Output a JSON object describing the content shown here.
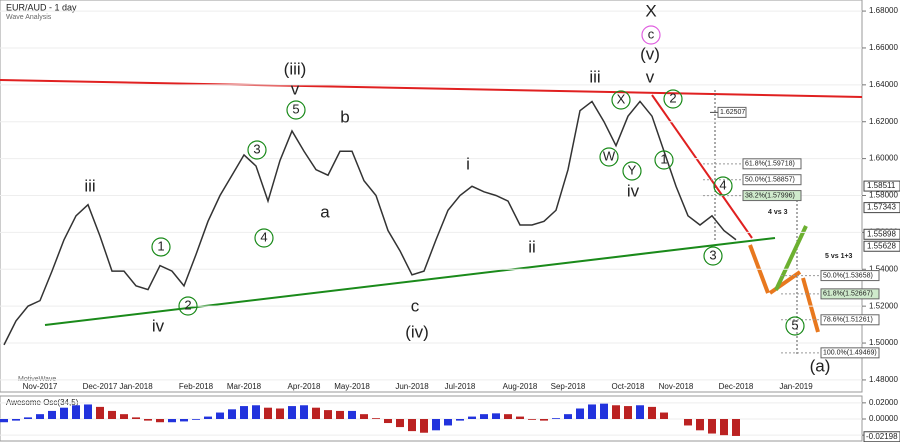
{
  "chart_data": [
    {
      "type": "line",
      "title": "EUR/AUD - 1 day",
      "subtitle": "Wave Analysis",
      "watermark": "MotiveWave",
      "color": "#333333",
      "categories": [
        null,
        null,
        null,
        "Nov-2017",
        null,
        null,
        null,
        null,
        "Dec-2017",
        null,
        null,
        "Jan-2018",
        null,
        null,
        null,
        null,
        "Feb-2018",
        null,
        null,
        null,
        "Mar-2018",
        null,
        null,
        null,
        null,
        "Apr-2018",
        null,
        null,
        null,
        "May-2018",
        null,
        null,
        null,
        null,
        "Jun-2018",
        null,
        null,
        null,
        "Jul-2018",
        null,
        null,
        null,
        null,
        "Aug-2018",
        null,
        null,
        null,
        "Sep-2018",
        null,
        null,
        null,
        null,
        "Oct-2018",
        null,
        null,
        null,
        "Nov-2018",
        null,
        null,
        null,
        null,
        "Dec-2018",
        null,
        null,
        null,
        null,
        "Jan-2019"
      ],
      "values": [
        1.499,
        1.512,
        1.52,
        1.523,
        1.539,
        1.556,
        1.569,
        1.575,
        1.558,
        1.539,
        1.539,
        1.531,
        1.529,
        1.542,
        1.539,
        1.531,
        1.548,
        1.566,
        1.58,
        1.591,
        1.602,
        1.596,
        1.577,
        1.599,
        1.615,
        1.604,
        1.594,
        1.591,
        1.604,
        1.604,
        1.588,
        1.58,
        1.561,
        1.55,
        1.537,
        1.539,
        1.556,
        1.572,
        1.58,
        1.585,
        1.582,
        1.58,
        1.577,
        1.564,
        1.564,
        1.566,
        1.572,
        1.594,
        1.626,
        1.631,
        1.62,
        1.607,
        1.623,
        1.631,
        1.623,
        1.604,
        1.585,
        1.569,
        1.564,
        1.569,
        1.561,
        1.556,
        null,
        null,
        null,
        null,
        null
      ],
      "ylim": [
        1.474,
        1.686
      ],
      "yticks": [
        {
          "value": 1.48,
          "label": "1.48000"
        },
        {
          "value": 1.5,
          "label": "1.50000"
        },
        {
          "value": 1.52,
          "label": "1.52000"
        },
        {
          "value": 1.54,
          "label": "1.54000"
        },
        {
          "value": 1.56,
          "label": "1.56000"
        },
        {
          "value": 1.58,
          "label": "1.58000"
        },
        {
          "value": 1.6,
          "label": "1.60000"
        },
        {
          "value": 1.62,
          "label": "1.62000"
        },
        {
          "value": 1.64,
          "label": "1.64000"
        },
        {
          "value": 1.66,
          "label": "1.66000"
        },
        {
          "value": 1.68,
          "label": "1.68000"
        }
      ],
      "price_tags": [
        1.58511,
        1.57343,
        1.55898,
        1.55628
      ],
      "fib_levels": [
        {
          "value": 1.59718,
          "label": "61.8%(1.59718)"
        },
        {
          "value": 1.58857,
          "label": "50.0%(1.58857)"
        },
        {
          "value": 1.57996,
          "label": "38.2%(1.57996)"
        },
        {
          "value": 1.62507,
          "label": "1.62507"
        },
        {
          "value": 1.53658,
          "label": "50.0%(1.53658)"
        },
        {
          "value": 1.52667,
          "label": "61.8%(1.52667)"
        },
        {
          "value": 1.51261,
          "label": "78.6%(1.51261)"
        },
        {
          "value": 1.49469,
          "label": "100.0%(1.49469)"
        }
      ],
      "annotations": [
        "4 vs 3",
        "5 vs 1+3"
      ],
      "wave_labels": [
        "iii",
        "iv",
        "1",
        "2",
        "3",
        "4",
        "5",
        "v",
        "(iii)",
        "b",
        "a",
        "c",
        "(iv)",
        "i",
        "ii",
        "iii",
        "X",
        "W",
        "Y",
        "iv",
        "v",
        "(v)",
        "c",
        "X",
        "2",
        "1",
        "4",
        "3",
        "5",
        "(a)"
      ]
    },
    {
      "type": "bar",
      "title": "Awesome Osc(34,5)",
      "up_color": "#2233dd",
      "down_color": "#bb2222",
      "values": [
        -0.004,
        -0.002,
        0.002,
        0.006,
        0.01,
        0.014,
        0.017,
        0.018,
        0.015,
        0.01,
        0.006,
        0.002,
        -0.002,
        -0.004,
        -0.004,
        -0.003,
        -0.001,
        0.003,
        0.008,
        0.012,
        0.016,
        0.017,
        0.014,
        0.013,
        0.016,
        0.017,
        0.014,
        0.011,
        0.01,
        0.01,
        0.006,
        0.001,
        -0.005,
        -0.01,
        -0.015,
        -0.017,
        -0.014,
        -0.008,
        -0.002,
        0.003,
        0.006,
        0.007,
        0.006,
        0.003,
        -0.001,
        -0.002,
        0.001,
        0.006,
        0.013,
        0.018,
        0.019,
        0.017,
        0.016,
        0.017,
        0.015,
        0.008,
        0.0,
        -0.008,
        -0.014,
        -0.018,
        -0.02,
        -0.021
      ],
      "ylim": [
        -0.026,
        0.026
      ],
      "yticks": [
        {
          "value": -0.02,
          "label": "-0.02000"
        },
        {
          "value": 0,
          "label": "0.00000"
        },
        {
          "value": 0.02,
          "label": "0.02000"
        }
      ],
      "price_tags": [
        {
          "value": -0.02198,
          "label": "-0.02198"
        }
      ]
    }
  ]
}
